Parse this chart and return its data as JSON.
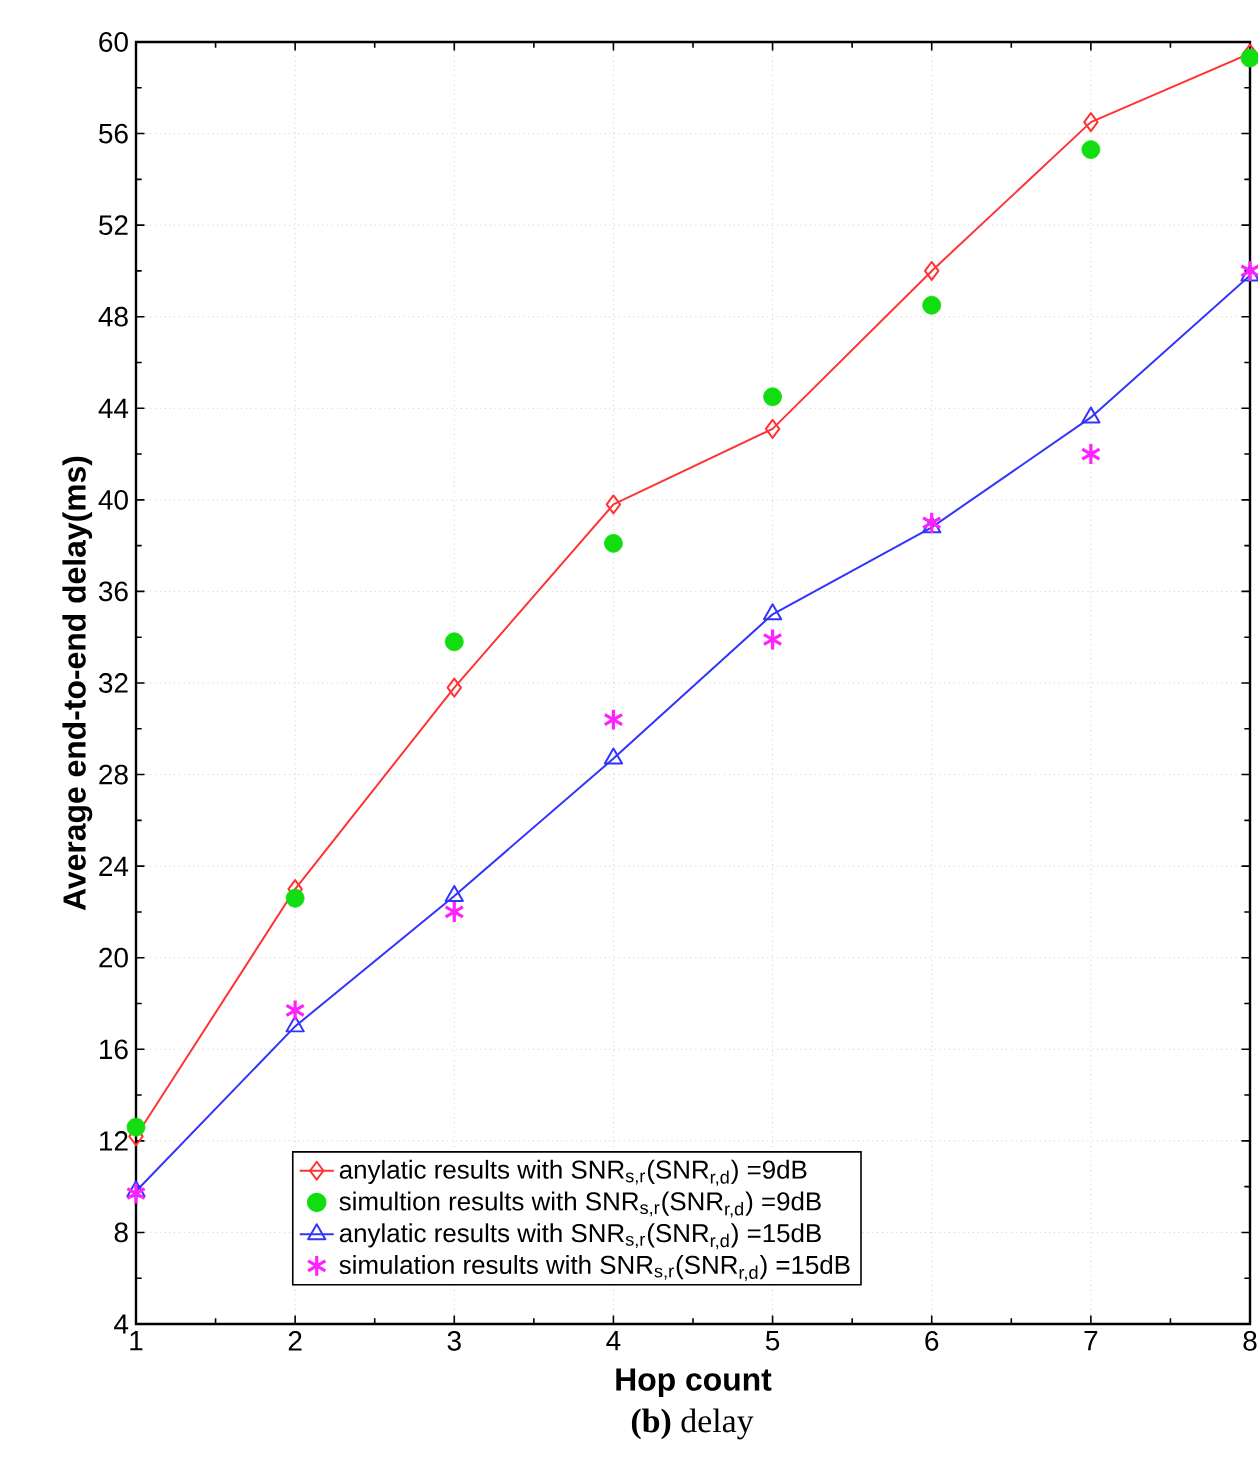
{
  "chart_data": {
    "type": "line",
    "xlabel": "Hop count",
    "ylabel": "Average end-to-end delay(ms)",
    "x": [
      1,
      2,
      3,
      4,
      5,
      6,
      7,
      8
    ],
    "xlim": [
      1,
      8
    ],
    "xticks": [
      1,
      2,
      3,
      4,
      5,
      6,
      7,
      8
    ],
    "ylim": [
      4,
      60
    ],
    "yticks": [
      4,
      8,
      12,
      16,
      20,
      24,
      28,
      32,
      36,
      40,
      44,
      48,
      52,
      56,
      60
    ],
    "grid": true,
    "legend": "bottom",
    "annotations": [
      "**(b)** delay"
    ],
    "series": [
      {
        "name": "anylatic results with SNR$_{s,r}$(SNR$_{r,d}$) =9dB",
        "marker": "diamond",
        "color": "#ff3333",
        "values": [
          12.2,
          23.0,
          31.8,
          39.8,
          43.1,
          50.0,
          56.5,
          59.5
        ]
      },
      {
        "name": "simultion results with SNR$_{s,r}$(SNR$_{r,d}$) =9dB",
        "type": "scatter",
        "marker": "circle",
        "color": "#11dd11",
        "values": [
          12.6,
          22.6,
          33.8,
          38.1,
          44.5,
          48.5,
          55.3,
          59.3
        ]
      },
      {
        "name": "anylatic results with SNR$_{s,r}$(SNR$_{r,d}$) =15dB",
        "marker": "triangle",
        "color": "#3333ff",
        "values": [
          9.8,
          17.0,
          22.7,
          28.7,
          35.0,
          38.8,
          43.6,
          49.8
        ]
      },
      {
        "name": "simulation results  with SNR$_{s,r}$(SNR$_{r,d}$) =15dB",
        "type": "scatter",
        "marker": "cross",
        "color": "#ff22ff",
        "values": [
          9.7,
          17.7,
          22.0,
          30.4,
          33.9,
          39.0,
          42.0,
          50.0
        ]
      }
    ]
  }
}
